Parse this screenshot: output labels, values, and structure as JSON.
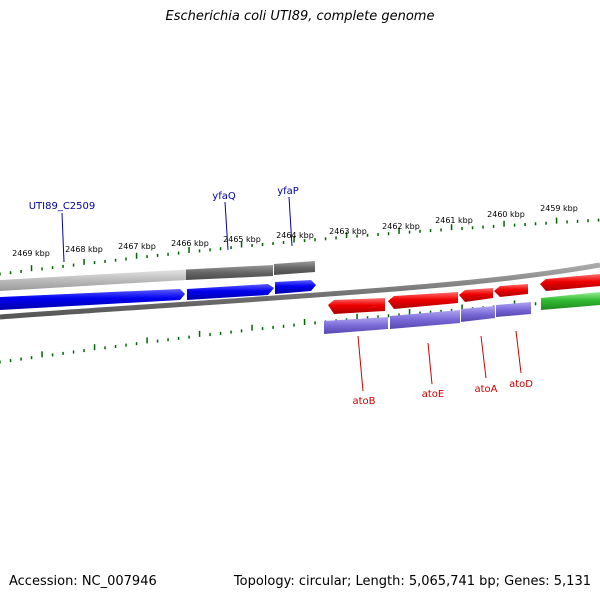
{
  "title": "Escherichia coli UTI89, complete genome",
  "footer": {
    "accession": "Accession: NC_007946",
    "summary": "Topology: circular; Length: 5,065,741 bp; Genes: 5,131"
  },
  "colors": {
    "forward_cds": "#0000ee",
    "reverse_cds": "#ee0000",
    "forward_gene": "#666666",
    "forward_gene_light": "#bbbbbb",
    "reverse_gene": "#7a6ad8",
    "other": "#33bb33",
    "ticks": "#006600",
    "backbone": "#777777",
    "forward_label": "#0000aa",
    "reverse_label": "#cc0000"
  },
  "upper_scale": [
    "2469 kbp",
    "2468 kbp",
    "2467 kbp",
    "2466 kbp",
    "2465 kbp",
    "2464 kbp"
  ],
  "lower_scale": [
    "2463 kbp",
    "2462 kbp",
    "2461 kbp",
    "2460 kbp",
    "2459 kbp"
  ],
  "forward_labels": [
    "UTI89_C2509",
    "yfaQ",
    "yfaP"
  ],
  "reverse_labels": [
    "atoB",
    "atoE",
    "atoA",
    "atoD"
  ]
}
